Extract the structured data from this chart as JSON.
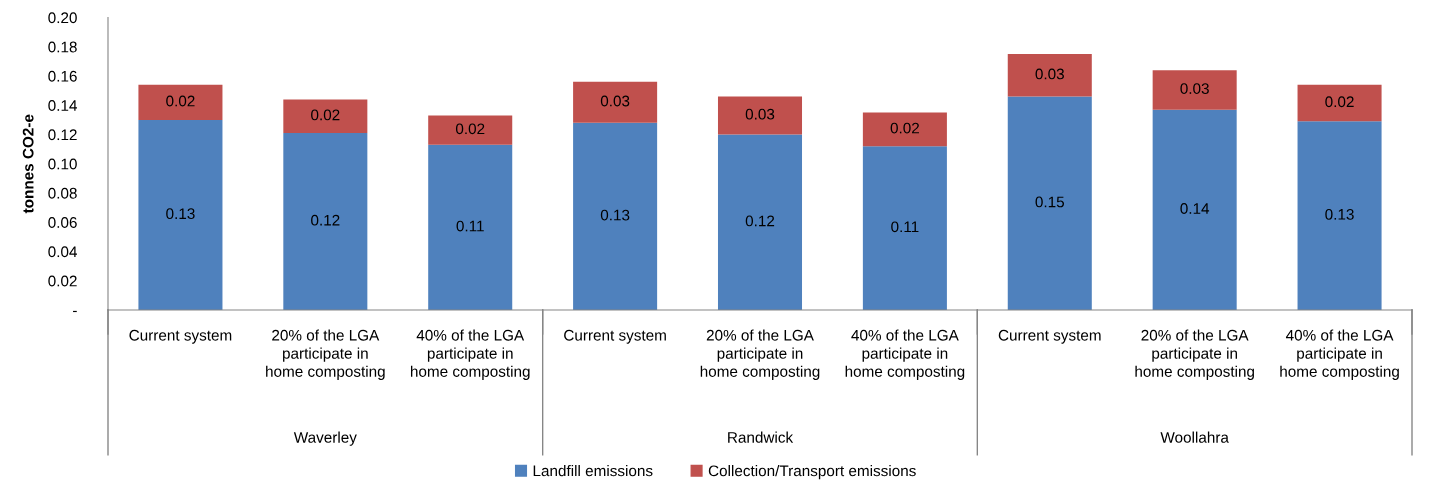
{
  "chart_data": {
    "type": "bar",
    "stacked": true,
    "ylabel": "tonnes CO2-e",
    "categories": [
      "Current system",
      "20% of the LGA\nparticipate in\nhome composting",
      "40% of the LGA\nparticipate in\nhome composting",
      "Current system",
      "20% of the LGA\nparticipate in\nhome composting",
      "40% of the LGA\nparticipate in\nhome composting",
      "Current system",
      "20% of the LGA\nparticipate in\nhome composting",
      "40% of the LGA\nparticipate in\nhome composting"
    ],
    "series": [
      {
        "name": "Landfill emissions",
        "color": "#4f81bd",
        "values": [
          0.13,
          0.121,
          0.113,
          0.128,
          0.12,
          0.112,
          0.146,
          0.137,
          0.129
        ],
        "value_labels": [
          "0.13",
          "0.12",
          "0.11",
          "0.13",
          "0.12",
          "0.11",
          "0.15",
          "0.14",
          "0.13"
        ]
      },
      {
        "name": "Collection/Transport emissions",
        "color": "#c0504d",
        "values": [
          0.024,
          0.023,
          0.02,
          0.028,
          0.026,
          0.023,
          0.029,
          0.027,
          0.025
        ],
        "value_labels": [
          "0.02",
          "0.02",
          "0.02",
          "0.03",
          "0.03",
          "0.02",
          "0.03",
          "0.03",
          "0.02"
        ]
      }
    ],
    "annotations": [
      "Waverley",
      "Randwick",
      "Woollahra"
    ],
    "ylim": [
      0,
      0.2
    ],
    "yticks": [
      {
        "value": 0,
        "label": "-"
      },
      {
        "value": 0.02,
        "label": "0.02"
      },
      {
        "value": 0.04,
        "label": "0.04"
      },
      {
        "value": 0.06,
        "label": "0.06"
      },
      {
        "value": 0.08,
        "label": "0.08"
      },
      {
        "value": 0.1,
        "label": "0.10"
      },
      {
        "value": 0.12,
        "label": "0.12"
      },
      {
        "value": 0.14,
        "label": "0.14"
      },
      {
        "value": 0.16,
        "label": "0.16"
      },
      {
        "value": 0.18,
        "label": "0.18"
      },
      {
        "value": 0.2,
        "label": "0.20"
      }
    ],
    "grid": false,
    "legend": "bottom"
  }
}
